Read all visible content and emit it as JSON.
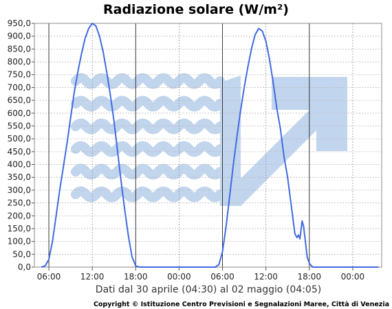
{
  "chart_data": {
    "type": "line",
    "title": "Radiazione solare (W/m²)",
    "xlabel": "Dati dal 30 aprile (04:30) al 02 maggio (04:05)",
    "ylabel": "",
    "ylim": [
      0,
      950
    ],
    "xlim": [
      4.0,
      52.0
    ],
    "y_ticks": [
      "0,0",
      "50,0",
      "100,0",
      "150,0",
      "200,0",
      "250,0",
      "300,0",
      "350,0",
      "400,0",
      "450,0",
      "500,0",
      "550,0",
      "600,0",
      "650,0",
      "700,0",
      "750,0",
      "800,0",
      "850,0",
      "900,0",
      "950,0"
    ],
    "y_tick_values": [
      0,
      50,
      100,
      150,
      200,
      250,
      300,
      350,
      400,
      450,
      500,
      550,
      600,
      650,
      700,
      750,
      800,
      850,
      900,
      950
    ],
    "x_ticks": [
      "06:00",
      "12:00",
      "18:00",
      "00:00",
      "06:00",
      "12:00",
      "18:00",
      "00:00"
    ],
    "x_tick_values": [
      6,
      12,
      18,
      24,
      30,
      36,
      42,
      48
    ],
    "grid": true,
    "line_color": "#4169e1",
    "series": [
      {
        "x": [
          5.0,
          5.5,
          6.0,
          6.5,
          7.0,
          7.5,
          8.0,
          8.5,
          9.0,
          9.5,
          10.0,
          10.5,
          11.0,
          11.5,
          12.0,
          12.5,
          13.0,
          13.5,
          14.0,
          14.5,
          15.0,
          15.5,
          16.0,
          16.5,
          17.0,
          17.5,
          18.0,
          18.5,
          19.0,
          19.5,
          20.0,
          21.0,
          22.0,
          23.0,
          24.0,
          25.0,
          26.0,
          27.0,
          28.0,
          29.0,
          29.5,
          30.0,
          30.5,
          31.0,
          31.5,
          32.0,
          32.5,
          33.0,
          33.5,
          34.0,
          34.5,
          35.0,
          35.5,
          36.0,
          36.5,
          37.0,
          37.5,
          38.0,
          38.5,
          39.0,
          39.5,
          40.0,
          40.3,
          40.5,
          40.7,
          41.0,
          41.2,
          41.5,
          41.7,
          42.0,
          42.3,
          42.5,
          42.8,
          43.0,
          43.3,
          43.5,
          44.0,
          45.0,
          46.0,
          47.0,
          48.0,
          49.0,
          50.0,
          51.0,
          51.5
        ],
        "y": [
          0,
          5,
          30,
          100,
          200,
          300,
          390,
          480,
          580,
          680,
          760,
          830,
          890,
          930,
          950,
          940,
          900,
          840,
          760,
          670,
          570,
          450,
          330,
          220,
          120,
          40,
          5,
          0,
          0,
          0,
          0,
          0,
          0,
          0,
          0,
          0,
          0,
          0,
          0,
          0,
          10,
          60,
          160,
          280,
          400,
          510,
          610,
          700,
          780,
          850,
          905,
          930,
          920,
          880,
          810,
          720,
          620,
          540,
          430,
          350,
          240,
          130,
          115,
          125,
          110,
          180,
          160,
          90,
          40,
          15,
          5,
          0,
          0,
          0,
          0,
          0,
          0,
          0,
          0,
          0,
          0,
          0,
          0,
          0,
          0
        ]
      }
    ],
    "credit": "Copyright © Istituzione Centro Previsioni e Segnalazioni Maree, Città di Venezia"
  }
}
